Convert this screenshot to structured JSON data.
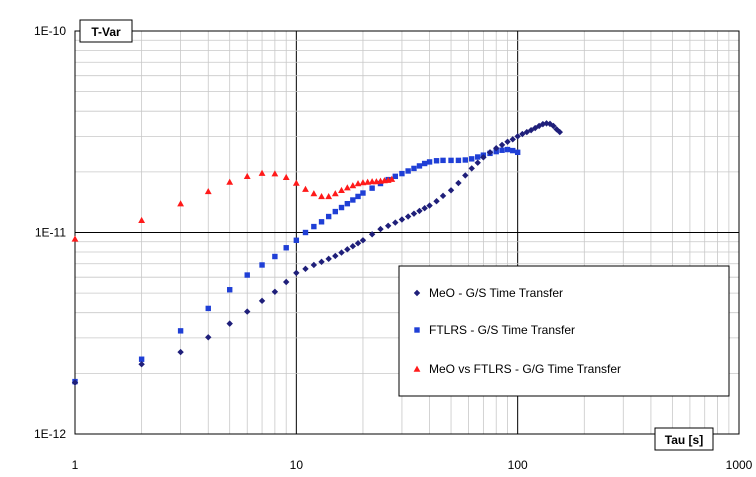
{
  "chart_data": {
    "type": "scatter",
    "title": "",
    "xlabel": "Tau [s]",
    "ylabel": "T-Var",
    "x_scale": "log",
    "y_scale": "log",
    "xlim": [
      1,
      1000
    ],
    "ylim": [
      1e-12,
      1e-10
    ],
    "x_tick_labels": [
      "1",
      "10",
      "100",
      "1000"
    ],
    "y_tick_labels": [
      "1E-12",
      "1E-11",
      "1E-10"
    ],
    "grid": true,
    "legend_position": "lower-right",
    "series": [
      {
        "name": "MeO - G/S Time Transfer",
        "color": "#1f1f7a",
        "marker": "diamond",
        "points": [
          [
            1,
            1.8e-12
          ],
          [
            2,
            2.22e-12
          ],
          [
            3,
            2.55e-12
          ],
          [
            4,
            3.02e-12
          ],
          [
            5,
            3.53e-12
          ],
          [
            6,
            4.05e-12
          ],
          [
            7,
            4.58e-12
          ],
          [
            8,
            5.08e-12
          ],
          [
            9,
            5.68e-12
          ],
          [
            10,
            6.3e-12
          ],
          [
            11,
            6.6e-12
          ],
          [
            12,
            6.9e-12
          ],
          [
            13,
            7.15e-12
          ],
          [
            14,
            7.4e-12
          ],
          [
            15,
            7.65e-12
          ],
          [
            16,
            7.95e-12
          ],
          [
            17,
            8.25e-12
          ],
          [
            18,
            8.55e-12
          ],
          [
            19,
            8.85e-12
          ],
          [
            20,
            9.15e-12
          ],
          [
            22,
            9.8e-12
          ],
          [
            24,
            1.04e-11
          ],
          [
            26,
            1.08e-11
          ],
          [
            28,
            1.12e-11
          ],
          [
            30,
            1.16e-11
          ],
          [
            32,
            1.2e-11
          ],
          [
            34,
            1.24e-11
          ],
          [
            36,
            1.28e-11
          ],
          [
            38,
            1.32e-11
          ],
          [
            40,
            1.36e-11
          ],
          [
            43,
            1.43e-11
          ],
          [
            46,
            1.52e-11
          ],
          [
            50,
            1.62e-11
          ],
          [
            54,
            1.76e-11
          ],
          [
            58,
            1.92e-11
          ],
          [
            62,
            2.08e-11
          ],
          [
            66,
            2.22e-11
          ],
          [
            70,
            2.36e-11
          ],
          [
            75,
            2.5e-11
          ],
          [
            80,
            2.62e-11
          ],
          [
            85,
            2.72e-11
          ],
          [
            90,
            2.82e-11
          ],
          [
            95,
            2.9e-11
          ],
          [
            100,
            3e-11
          ],
          [
            105,
            3.08e-11
          ],
          [
            110,
            3.15e-11
          ],
          [
            115,
            3.22e-11
          ],
          [
            120,
            3.3e-11
          ],
          [
            125,
            3.38e-11
          ],
          [
            130,
            3.45e-11
          ],
          [
            135,
            3.48e-11
          ],
          [
            140,
            3.46e-11
          ],
          [
            145,
            3.38e-11
          ],
          [
            150,
            3.25e-11
          ],
          [
            155,
            3.15e-11
          ]
        ]
      },
      {
        "name": "FTLRS - G/S Time Transfer",
        "color": "#1f3fd6",
        "marker": "square",
        "points": [
          [
            1,
            1.82e-12
          ],
          [
            2,
            2.35e-12
          ],
          [
            3,
            3.25e-12
          ],
          [
            4,
            4.2e-12
          ],
          [
            5,
            5.2e-12
          ],
          [
            6,
            6.15e-12
          ],
          [
            7,
            6.9e-12
          ],
          [
            8,
            7.6e-12
          ],
          [
            9,
            8.4e-12
          ],
          [
            10,
            9.15e-12
          ],
          [
            11,
            1e-11
          ],
          [
            12,
            1.07e-11
          ],
          [
            13,
            1.13e-11
          ],
          [
            14,
            1.2e-11
          ],
          [
            15,
            1.27e-11
          ],
          [
            16,
            1.33e-11
          ],
          [
            17,
            1.39e-11
          ],
          [
            18,
            1.45e-11
          ],
          [
            19,
            1.51e-11
          ],
          [
            20,
            1.57e-11
          ],
          [
            22,
            1.66e-11
          ],
          [
            24,
            1.75e-11
          ],
          [
            26,
            1.83e-11
          ],
          [
            28,
            1.9e-11
          ],
          [
            30,
            1.96e-11
          ],
          [
            32,
            2.02e-11
          ],
          [
            34,
            2.08e-11
          ],
          [
            36,
            2.14e-11
          ],
          [
            38,
            2.2e-11
          ],
          [
            40,
            2.24e-11
          ],
          [
            43,
            2.27e-11
          ],
          [
            46,
            2.28e-11
          ],
          [
            50,
            2.28e-11
          ],
          [
            54,
            2.28e-11
          ],
          [
            58,
            2.29e-11
          ],
          [
            62,
            2.32e-11
          ],
          [
            66,
            2.37e-11
          ],
          [
            70,
            2.42e-11
          ],
          [
            75,
            2.47e-11
          ],
          [
            80,
            2.52e-11
          ],
          [
            85,
            2.56e-11
          ],
          [
            90,
            2.58e-11
          ],
          [
            95,
            2.55e-11
          ],
          [
            100,
            2.5e-11
          ]
        ]
      },
      {
        "name": "MeO vs FTLRS - G/G Time Transfer",
        "color": "#ff1a1a",
        "marker": "triangle",
        "points": [
          [
            1,
            9.3e-12
          ],
          [
            2,
            1.15e-11
          ],
          [
            3,
            1.39e-11
          ],
          [
            4,
            1.6e-11
          ],
          [
            5,
            1.78e-11
          ],
          [
            6,
            1.9e-11
          ],
          [
            7,
            1.97e-11
          ],
          [
            8,
            1.96e-11
          ],
          [
            9,
            1.88e-11
          ],
          [
            10,
            1.76e-11
          ],
          [
            11,
            1.64e-11
          ],
          [
            12,
            1.56e-11
          ],
          [
            13,
            1.51e-11
          ],
          [
            14,
            1.51e-11
          ],
          [
            15,
            1.56e-11
          ],
          [
            16,
            1.62e-11
          ],
          [
            17,
            1.67e-11
          ],
          [
            18,
            1.71e-11
          ],
          [
            19,
            1.75e-11
          ],
          [
            20,
            1.77e-11
          ],
          [
            21,
            1.78e-11
          ],
          [
            22,
            1.79e-11
          ],
          [
            23,
            1.79e-11
          ],
          [
            24,
            1.8e-11
          ],
          [
            25,
            1.81e-11
          ],
          [
            26,
            1.82e-11
          ],
          [
            27,
            1.84e-11
          ]
        ]
      }
    ]
  }
}
